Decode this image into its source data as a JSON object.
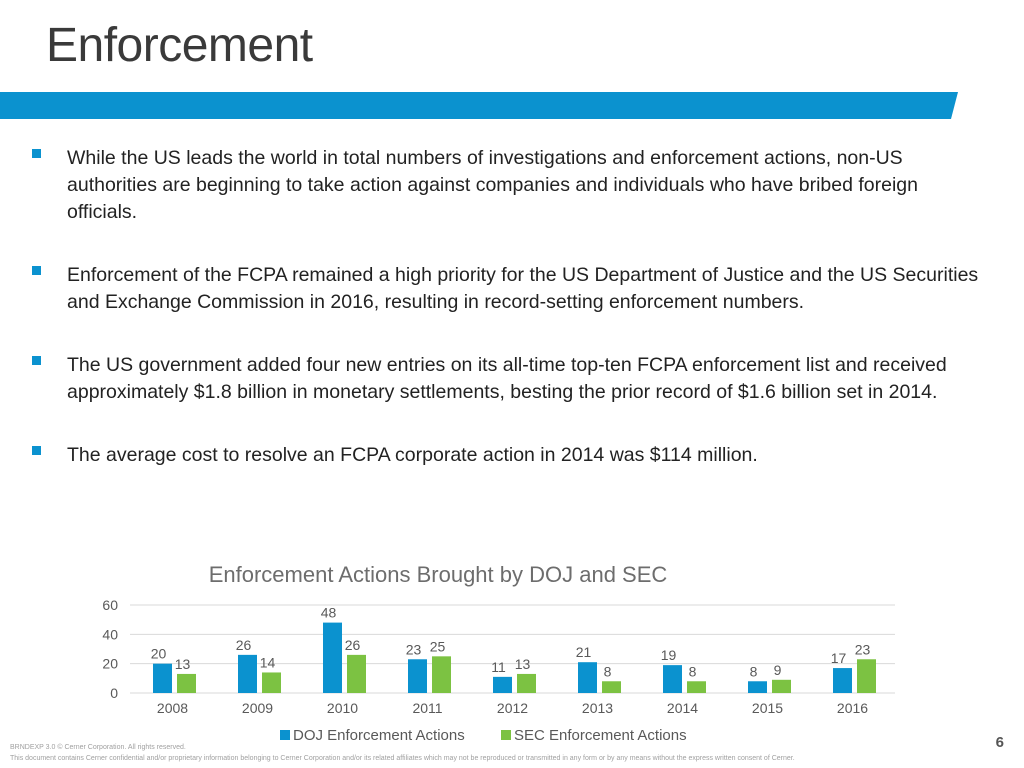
{
  "slide": {
    "title": "Enforcement",
    "page_number": "6",
    "accent_color": "#0b92cf"
  },
  "bullets": [
    "While the US leads the world in total numbers of investigations and enforcement actions, non-US authorities are beginning to take action against companies and individuals who have bribed foreign officials.",
    "Enforcement of the FCPA remained a high priority for the US Department of Justice and the US Securities and Exchange Commission in 2016, resulting in record-setting enforcement numbers.",
    "The US government added four new entries on its all-time top-ten FCPA enforcement list and received approximately $1.8 billion in monetary settlements, besting the prior record of $1.6 billion set in 2014.",
    "The average cost to resolve an FCPA corporate action in 2014 was $114 million."
  ],
  "footer": {
    "line1": "BRNDEXP 3.0  ©  Cerner Corporation.  All rights reserved.",
    "line2": "This document contains Cerner confidential and/or proprietary information belonging to Cerner Corporation and/or its related affiliates which may not be reproduced or transmitted in any form or by any means without the express written consent of Cerner."
  },
  "chart_data": {
    "type": "bar",
    "title": "Enforcement Actions Brought by DOJ and SEC",
    "categories": [
      "2008",
      "2009",
      "2010",
      "2011",
      "2012",
      "2013",
      "2014",
      "2015",
      "2016"
    ],
    "series": [
      {
        "name": "DOJ Enforcement Actions",
        "color": "#0b92cf",
        "values": [
          20,
          26,
          48,
          23,
          11,
          21,
          19,
          8,
          17
        ]
      },
      {
        "name": "SEC Enforcement Actions",
        "color": "#7cc242",
        "values": [
          13,
          14,
          26,
          25,
          13,
          8,
          8,
          9,
          23
        ]
      }
    ],
    "ylim": [
      0,
      60
    ],
    "yticks": [
      0,
      20,
      40,
      60
    ],
    "grid": true,
    "legend": "bottom",
    "data_labels": true
  }
}
